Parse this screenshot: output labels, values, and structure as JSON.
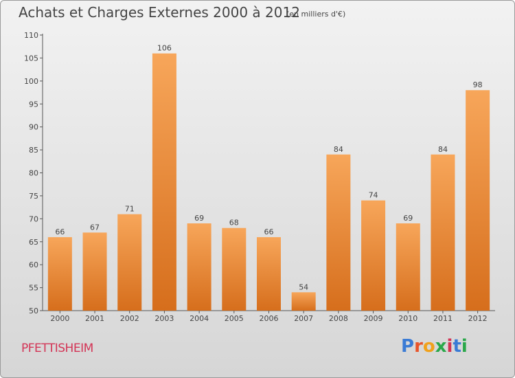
{
  "header": {
    "title": "Achats et Charges Externes 2000 à 2012",
    "subtitle": "(en milliers d'€)"
  },
  "footer": {
    "place": "PFETTISHEIM",
    "logo_text": "Proxiti",
    "logo_colors": [
      "#3a7bd5",
      "#e8542a",
      "#f0a11c",
      "#2aa84a",
      "#d33355",
      "#3a7bd5",
      "#2aa84a"
    ]
  },
  "chart_data": {
    "type": "bar",
    "title": "Achats et Charges Externes 2000 à 2012",
    "subtitle": "(en milliers d'€)",
    "xlabel": "",
    "ylabel": "",
    "categories": [
      "2000",
      "2001",
      "2002",
      "2003",
      "2004",
      "2005",
      "2006",
      "2007",
      "2008",
      "2009",
      "2010",
      "2011",
      "2012"
    ],
    "values": [
      66,
      67,
      71,
      106,
      69,
      68,
      66,
      54,
      84,
      74,
      69,
      84,
      98
    ],
    "ylim": [
      50,
      110
    ],
    "yticks": [
      50,
      55,
      60,
      65,
      70,
      75,
      80,
      85,
      90,
      95,
      100,
      105,
      110
    ],
    "grid": false,
    "legend": "none",
    "colors": {
      "bar_light": "#f7a65a",
      "bar_dark": "#d66e1c",
      "axis": "#555555"
    }
  }
}
